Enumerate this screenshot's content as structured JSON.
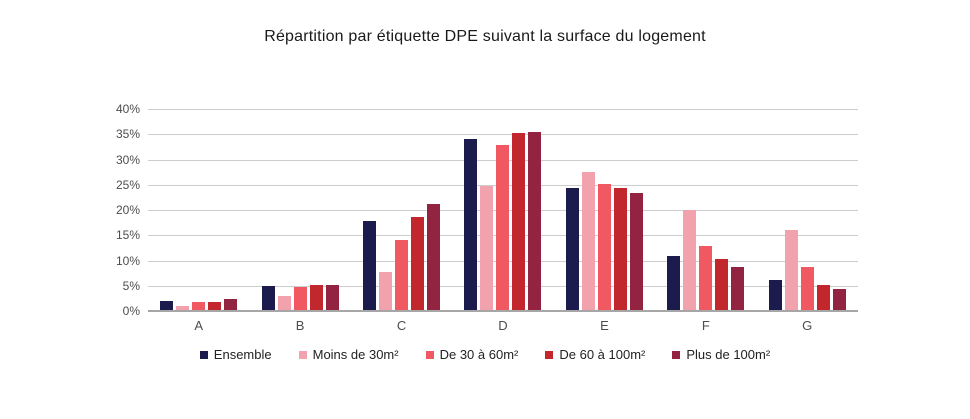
{
  "chart_data": {
    "type": "bar",
    "title": "Répartition par étiquette DPE suivant la surface du logement",
    "categories": [
      "A",
      "B",
      "C",
      "D",
      "E",
      "F",
      "G"
    ],
    "series": [
      {
        "name": "Ensemble",
        "color": "#1b1b4e",
        "values": [
          2.0,
          4.9,
          17.9,
          34.1,
          24.4,
          10.8,
          6.1
        ]
      },
      {
        "name": "Moins de 30m²",
        "color": "#f2a2ad",
        "values": [
          0.9,
          3.0,
          7.8,
          24.8,
          27.6,
          20.0,
          16.0
        ]
      },
      {
        "name": "De 30 à 60m²",
        "color": "#f05862",
        "values": [
          1.7,
          4.7,
          14.0,
          32.8,
          25.2,
          12.8,
          8.7
        ]
      },
      {
        "name": "De 60 à 100m²",
        "color": "#c1272d",
        "values": [
          1.8,
          5.1,
          18.6,
          35.2,
          24.4,
          10.3,
          5.1
        ]
      },
      {
        "name": "Plus de 100m²",
        "color": "#922441",
        "values": [
          2.3,
          5.1,
          21.1,
          35.4,
          23.4,
          8.8,
          4.4
        ]
      }
    ],
    "y_ticks": [
      "40%",
      "35%",
      "30%",
      "25%",
      "20%",
      "15%",
      "10%",
      "5%",
      "0%"
    ],
    "ylim": [
      0,
      40
    ],
    "grid": true,
    "legend_position": "bottom",
    "xlabel": "",
    "ylabel": ""
  },
  "colors": {
    "background": "#ffffff",
    "gridline": "#cdcdcd",
    "baseline": "#a6a6a6",
    "axis_text": "#4d4d4d",
    "title_text": "#1a1a1a"
  }
}
